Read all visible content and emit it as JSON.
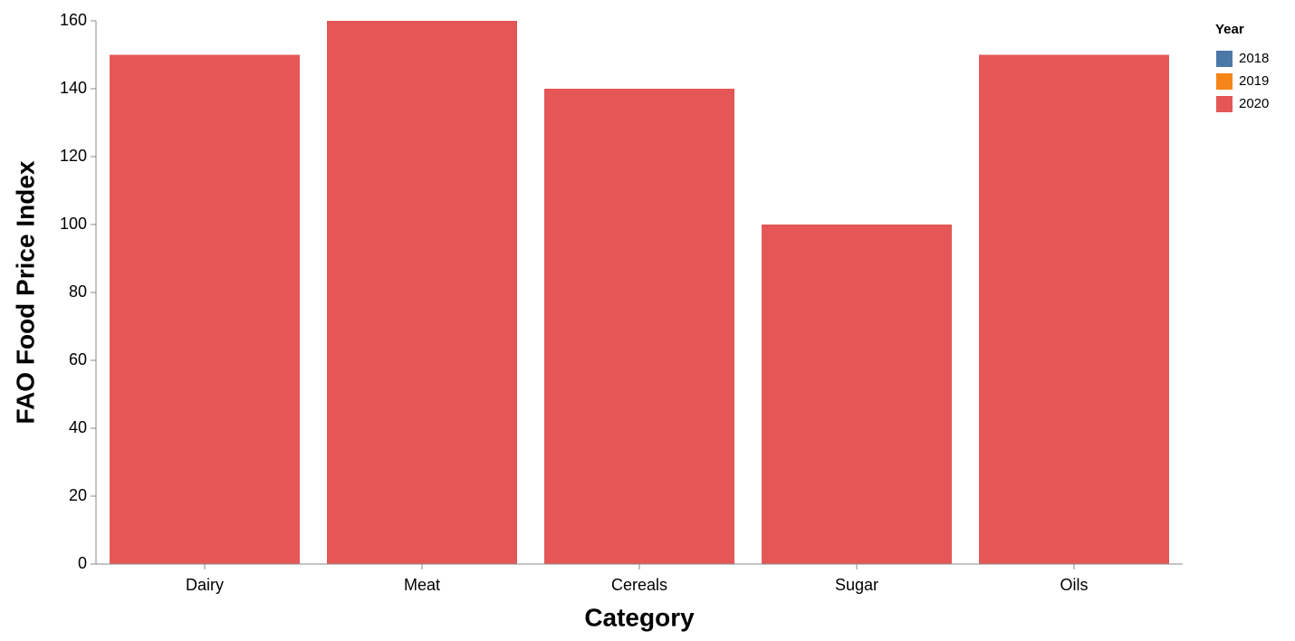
{
  "chart_data": {
    "type": "bar",
    "x_label": "Category",
    "y_label": "FAO Food Price Index",
    "legend_title": "Year",
    "categories": [
      "Dairy",
      "Meat",
      "Cereals",
      "Sugar",
      "Oils"
    ],
    "series": [
      {
        "name": "2018",
        "color": "#4c78a8",
        "values": [
          null,
          null,
          null,
          null,
          null
        ]
      },
      {
        "name": "2019",
        "color": "#f58518",
        "values": [
          null,
          null,
          null,
          null,
          null
        ]
      },
      {
        "name": "2020",
        "color": "#e45756",
        "values": [
          150,
          160,
          140,
          100,
          150
        ]
      }
    ],
    "ylim": [
      0,
      160
    ],
    "yticks": [
      0,
      20,
      40,
      60,
      80,
      100,
      120,
      140,
      160
    ]
  }
}
